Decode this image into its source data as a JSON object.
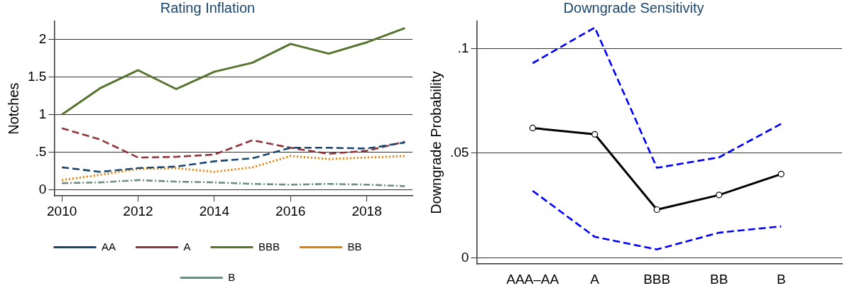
{
  "chart_data": [
    {
      "type": "line",
      "title": "Rating Inflation",
      "ylabel": "Notches",
      "x": [
        2010,
        2011,
        2012,
        2013,
        2014,
        2015,
        2016,
        2017,
        2018,
        2019
      ],
      "xlim": [
        2009.8,
        2019.2
      ],
      "xticks": [
        2010,
        2012,
        2014,
        2016,
        2018
      ],
      "ylim": [
        -0.08,
        2.24
      ],
      "yticks": [
        0,
        {
          "value": 0.5,
          "label": ".5"
        },
        1,
        1.5,
        2
      ],
      "grid": "y",
      "legend": "bottom",
      "marker": "none",
      "series": [
        {
          "name": "AA",
          "color": "#1a476f",
          "line_style": "dashed",
          "values": [
            0.3,
            0.24,
            0.29,
            0.31,
            0.38,
            0.42,
            0.56,
            0.56,
            0.55,
            0.63
          ]
        },
        {
          "name": "A",
          "color": "#90353b",
          "line_style": "dashed",
          "values": [
            0.82,
            0.67,
            0.43,
            0.44,
            0.47,
            0.66,
            0.56,
            0.48,
            0.52,
            0.64
          ]
        },
        {
          "name": "BBB",
          "color": "#55752f",
          "line_style": "solid",
          "values": [
            1.0,
            1.35,
            1.59,
            1.34,
            1.57,
            1.69,
            1.94,
            1.81,
            1.96,
            2.15
          ]
        },
        {
          "name": "BB",
          "color": "#e37e00",
          "line_style": "dotted",
          "values": [
            0.13,
            0.2,
            0.28,
            0.29,
            0.24,
            0.3,
            0.45,
            0.41,
            0.43,
            0.45
          ]
        },
        {
          "name": "B",
          "color": "#6e8e84",
          "line_style": "dashdot",
          "values": [
            0.09,
            0.1,
            0.13,
            0.11,
            0.1,
            0.08,
            0.07,
            0.08,
            0.07,
            0.05
          ]
        }
      ]
    },
    {
      "type": "line",
      "title": "Downgrade Sensitivity",
      "ylabel": "Downgrade Probability",
      "categories": [
        "AAA–AA",
        "A",
        "BBB",
        "BB",
        "B"
      ],
      "ylim": [
        -0.003,
        0.113
      ],
      "yticks": [
        0,
        {
          "value": 0.05,
          "label": ".05"
        },
        {
          "value": 0.1,
          "label": ".1"
        }
      ],
      "grid": "y",
      "legend": false,
      "series": [
        {
          "color": "#0000ff",
          "line_style": "dashed",
          "marker": "none",
          "values": [
            0.093,
            0.11,
            0.043,
            0.048,
            0.064
          ]
        },
        {
          "color": "#000000",
          "line_style": "solid",
          "marker": "circle",
          "values": [
            0.062,
            0.059,
            0.023,
            0.03,
            0.04
          ]
        },
        {
          "color": "#0000ff",
          "line_style": "dashed",
          "marker": "none",
          "values": [
            0.032,
            0.01,
            0.004,
            0.012,
            0.015
          ]
        }
      ]
    }
  ]
}
